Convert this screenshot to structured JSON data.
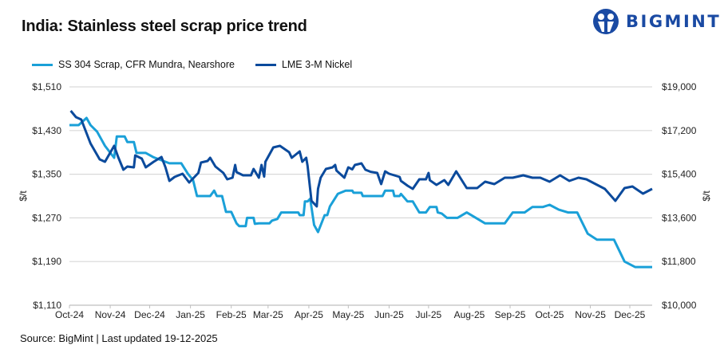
{
  "header": {
    "title": "India: Stainless steel scrap price trend",
    "logo_text": "BIGMINT"
  },
  "footer": {
    "source": "Source: BigMint | Last updated 19-12-2025"
  },
  "colors": {
    "ss304": "#1aa0d8",
    "nickel": "#0b4a9c",
    "grid": "#d9d9d9",
    "logo": "#1a4aa3"
  },
  "chart_data": {
    "type": "line",
    "title": "India: Stainless steel scrap price trend",
    "xlabel": "",
    "ylabel_left": "$/t",
    "ylabel_right": "$/t",
    "ylim_left": [
      1110,
      1510
    ],
    "ylim_right": [
      10000,
      19000
    ],
    "yticks_left": [
      "$1,510",
      "$1,430",
      "$1,350",
      "$1,270",
      "$1,190",
      "$1,110"
    ],
    "yticks_right": [
      "$19,000",
      "$17,200",
      "$15,400",
      "$13,600",
      "$11,800",
      "$10,000"
    ],
    "xticks": [
      "Oct-24",
      "Nov-24",
      "Dec-24",
      "Jan-25",
      "Feb-25",
      "Mar-25",
      "Apr-25",
      "May-25",
      "Jun-25",
      "Jul-25",
      "Aug-25",
      "Sep-25",
      "Oct-25",
      "Nov-25",
      "Dec-25"
    ],
    "xtick_dates": [
      "2024-10-01",
      "2024-11-01",
      "2024-12-01",
      "2025-01-01",
      "2025-02-01",
      "2025-03-01",
      "2025-04-01",
      "2025-05-01",
      "2025-06-01",
      "2025-07-01",
      "2025-08-01",
      "2025-09-01",
      "2025-10-01",
      "2025-11-01",
      "2025-12-01"
    ],
    "xlim": [
      "2024-10-01",
      "2025-12-18"
    ],
    "grid": true,
    "legend_position": "top-left",
    "series": [
      {
        "name": "SS 304 Scrap, CFR Mundra, Nearshore",
        "axis": "left",
        "color": "#1aa0d8",
        "points": [
          [
            "2024-10-01",
            1440
          ],
          [
            "2024-10-08",
            1440
          ],
          [
            "2024-10-14",
            1453
          ],
          [
            "2024-10-17",
            1440
          ],
          [
            "2024-10-22",
            1428
          ],
          [
            "2024-10-28",
            1402
          ],
          [
            "2024-11-04",
            1380
          ],
          [
            "2024-11-06",
            1419
          ],
          [
            "2024-11-12",
            1419
          ],
          [
            "2024-11-14",
            1409
          ],
          [
            "2024-11-19",
            1409
          ],
          [
            "2024-11-21",
            1389
          ],
          [
            "2024-11-28",
            1389
          ],
          [
            "2024-12-04",
            1381
          ],
          [
            "2024-12-16",
            1370
          ],
          [
            "2024-12-25",
            1370
          ],
          [
            "2024-12-30",
            1351
          ],
          [
            "2025-01-03",
            1339
          ],
          [
            "2025-01-06",
            1310
          ],
          [
            "2025-01-16",
            1310
          ],
          [
            "2025-01-19",
            1320
          ],
          [
            "2025-01-21",
            1310
          ],
          [
            "2025-01-25",
            1310
          ],
          [
            "2025-01-28",
            1281
          ],
          [
            "2025-02-01",
            1281
          ],
          [
            "2025-02-05",
            1260
          ],
          [
            "2025-02-07",
            1255
          ],
          [
            "2025-02-12",
            1255
          ],
          [
            "2025-02-13",
            1270
          ],
          [
            "2025-02-18",
            1270
          ],
          [
            "2025-02-19",
            1259
          ],
          [
            "2025-02-22",
            1260
          ],
          [
            "2025-03-02",
            1260
          ],
          [
            "2025-03-04",
            1265
          ],
          [
            "2025-03-08",
            1268
          ],
          [
            "2025-03-11",
            1280
          ],
          [
            "2025-03-24",
            1280
          ],
          [
            "2025-03-25",
            1275
          ],
          [
            "2025-03-28",
            1275
          ],
          [
            "2025-03-29",
            1300
          ],
          [
            "2025-03-31",
            1300
          ],
          [
            "2025-04-02",
            1305
          ],
          [
            "2025-04-05",
            1257
          ],
          [
            "2025-04-08",
            1244
          ],
          [
            "2025-04-13",
            1275
          ],
          [
            "2025-04-15",
            1275
          ],
          [
            "2025-04-17",
            1291
          ],
          [
            "2025-04-23",
            1314
          ],
          [
            "2025-04-29",
            1320
          ],
          [
            "2025-05-04",
            1320
          ],
          [
            "2025-05-05",
            1316
          ],
          [
            "2025-05-11",
            1316
          ],
          [
            "2025-05-12",
            1310
          ],
          [
            "2025-05-27",
            1310
          ],
          [
            "2025-05-29",
            1320
          ],
          [
            "2025-06-04",
            1320
          ],
          [
            "2025-06-05",
            1310
          ],
          [
            "2025-06-09",
            1310
          ],
          [
            "2025-06-10",
            1314
          ],
          [
            "2025-06-15",
            1300
          ],
          [
            "2025-06-19",
            1300
          ],
          [
            "2025-06-24",
            1280
          ],
          [
            "2025-06-29",
            1280
          ],
          [
            "2025-07-02",
            1290
          ],
          [
            "2025-07-07",
            1290
          ],
          [
            "2025-07-08",
            1280
          ],
          [
            "2025-07-11",
            1278
          ],
          [
            "2025-07-15",
            1270
          ],
          [
            "2025-07-23",
            1270
          ],
          [
            "2025-07-30",
            1280
          ],
          [
            "2025-08-13",
            1260
          ],
          [
            "2025-08-28",
            1260
          ],
          [
            "2025-09-03",
            1280
          ],
          [
            "2025-09-12",
            1280
          ],
          [
            "2025-09-18",
            1290
          ],
          [
            "2025-09-26",
            1290
          ],
          [
            "2025-10-01",
            1294
          ],
          [
            "2025-10-08",
            1285
          ],
          [
            "2025-10-15",
            1280
          ],
          [
            "2025-10-22",
            1280
          ],
          [
            "2025-10-30",
            1241
          ],
          [
            "2025-11-06",
            1230
          ],
          [
            "2025-11-19",
            1230
          ],
          [
            "2025-11-27",
            1190
          ],
          [
            "2025-12-05",
            1180
          ],
          [
            "2025-12-18",
            1180
          ]
        ]
      },
      {
        "name": "LME 3-M Nickel",
        "axis": "right",
        "color": "#0b4a9c",
        "points": [
          [
            "2024-10-02",
            18014
          ],
          [
            "2024-10-06",
            17752
          ],
          [
            "2024-10-10",
            17653
          ],
          [
            "2024-10-17",
            16668
          ],
          [
            "2024-10-24",
            16011
          ],
          [
            "2024-10-28",
            15912
          ],
          [
            "2024-11-04",
            16569
          ],
          [
            "2024-11-07",
            16109
          ],
          [
            "2024-11-11",
            15584
          ],
          [
            "2024-11-14",
            15715
          ],
          [
            "2024-11-19",
            15682
          ],
          [
            "2024-11-20",
            16175
          ],
          [
            "2024-11-25",
            16043
          ],
          [
            "2024-11-28",
            15682
          ],
          [
            "2024-12-04",
            15912
          ],
          [
            "2024-12-10",
            16109
          ],
          [
            "2024-12-13",
            15682
          ],
          [
            "2024-12-16",
            15124
          ],
          [
            "2024-12-20",
            15288
          ],
          [
            "2024-12-26",
            15419
          ],
          [
            "2024-12-31",
            15058
          ],
          [
            "2025-01-07",
            15452
          ],
          [
            "2025-01-09",
            15879
          ],
          [
            "2025-01-14",
            15945
          ],
          [
            "2025-01-16",
            16076
          ],
          [
            "2025-01-20",
            15715
          ],
          [
            "2025-01-26",
            15452
          ],
          [
            "2025-01-29",
            15190
          ],
          [
            "2025-02-02",
            15255
          ],
          [
            "2025-02-04",
            15781
          ],
          [
            "2025-02-05",
            15485
          ],
          [
            "2025-02-10",
            15354
          ],
          [
            "2025-02-16",
            15354
          ],
          [
            "2025-02-18",
            15616
          ],
          [
            "2025-02-22",
            15255
          ],
          [
            "2025-02-24",
            15781
          ],
          [
            "2025-02-26",
            15300
          ],
          [
            "2025-02-27",
            15912
          ],
          [
            "2025-03-05",
            16503
          ],
          [
            "2025-03-10",
            16569
          ],
          [
            "2025-03-17",
            16306
          ],
          [
            "2025-03-19",
            16076
          ],
          [
            "2025-03-25",
            16339
          ],
          [
            "2025-03-27",
            15912
          ],
          [
            "2025-03-30",
            16076
          ],
          [
            "2025-03-31",
            15748
          ],
          [
            "2025-04-03",
            14302
          ],
          [
            "2025-04-07",
            14072
          ],
          [
            "2025-04-08",
            14795
          ],
          [
            "2025-04-10",
            15255
          ],
          [
            "2025-04-14",
            15616
          ],
          [
            "2025-04-19",
            15682
          ],
          [
            "2025-04-21",
            15781
          ],
          [
            "2025-04-22",
            15550
          ],
          [
            "2025-04-28",
            15255
          ],
          [
            "2025-05-01",
            15682
          ],
          [
            "2025-05-04",
            15600
          ],
          [
            "2025-05-06",
            15781
          ],
          [
            "2025-05-11",
            15846
          ],
          [
            "2025-05-14",
            15584
          ],
          [
            "2025-05-18",
            15500
          ],
          [
            "2025-05-23",
            15452
          ],
          [
            "2025-05-26",
            14992
          ],
          [
            "2025-05-29",
            15518
          ],
          [
            "2025-06-01",
            15419
          ],
          [
            "2025-06-09",
            15288
          ],
          [
            "2025-06-10",
            15124
          ],
          [
            "2025-06-15",
            14927
          ],
          [
            "2025-06-19",
            14795
          ],
          [
            "2025-06-24",
            15190
          ],
          [
            "2025-06-29",
            15190
          ],
          [
            "2025-07-01",
            15452
          ],
          [
            "2025-07-02",
            15150
          ],
          [
            "2025-07-07",
            14960
          ],
          [
            "2025-07-13",
            15157
          ],
          [
            "2025-07-16",
            14960
          ],
          [
            "2025-07-22",
            15518
          ],
          [
            "2025-07-30",
            14828
          ],
          [
            "2025-08-07",
            14828
          ],
          [
            "2025-08-13",
            15091
          ],
          [
            "2025-08-20",
            14992
          ],
          [
            "2025-08-28",
            15255
          ],
          [
            "2025-09-03",
            15255
          ],
          [
            "2025-09-11",
            15354
          ],
          [
            "2025-09-18",
            15255
          ],
          [
            "2025-09-24",
            15255
          ],
          [
            "2025-10-01",
            15091
          ],
          [
            "2025-10-09",
            15354
          ],
          [
            "2025-10-16",
            15124
          ],
          [
            "2025-10-23",
            15255
          ],
          [
            "2025-10-29",
            15190
          ],
          [
            "2025-11-12",
            14795
          ],
          [
            "2025-11-20",
            14302
          ],
          [
            "2025-11-27",
            14828
          ],
          [
            "2025-12-03",
            14894
          ],
          [
            "2025-12-11",
            14598
          ],
          [
            "2025-12-18",
            14795
          ]
        ]
      }
    ]
  }
}
